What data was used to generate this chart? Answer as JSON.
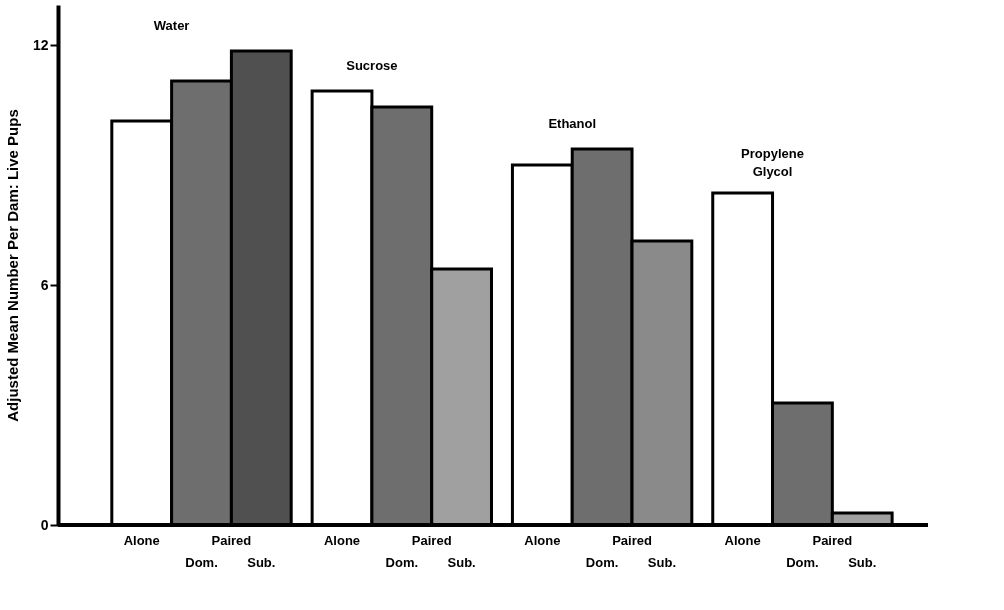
{
  "chart_data": {
    "type": "bar",
    "ylabel": "Adjusted Mean Number Per Dam: Live Pups",
    "categories": [
      "Alone",
      "Dom.",
      "Sub.",
      "Alone",
      "Dom.",
      "Sub.",
      "Alone",
      "Dom.",
      "Sub.",
      "Alone",
      "Dom.",
      "Sub."
    ],
    "values": [
      10.1,
      11.1,
      11.85,
      10.85,
      10.45,
      6.4,
      9.0,
      9.4,
      7.1,
      8.3,
      3.05,
      0.3
    ],
    "colors": [
      "#ffffff",
      "#6e6e6e",
      "#505050",
      "#ffffff",
      "#6e6e6e",
      "#a0a0a0",
      "#ffffff",
      "#6e6e6e",
      "#8a8a8a",
      "#ffffff",
      "#6e6e6e",
      "#a0a0a0"
    ],
    "annotations": [
      "Water",
      "Paired",
      "Sucrose",
      "Paired",
      "Ethanol",
      "Paired",
      "Propylene\nGlycol",
      "Paired"
    ],
    "ylim": [
      0,
      13
    ],
    "yticks": [
      0,
      6,
      12
    ],
    "grid": false
  }
}
